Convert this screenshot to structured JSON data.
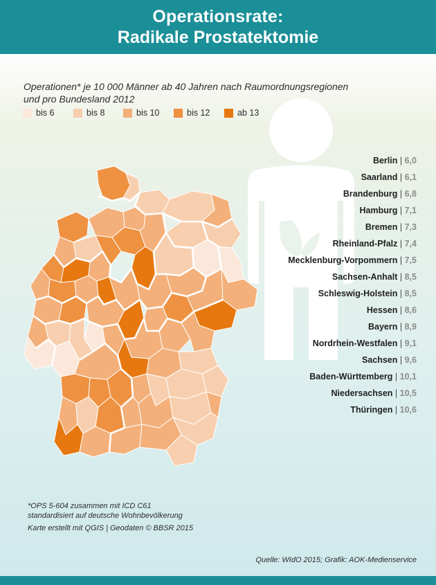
{
  "header": {
    "title_line1": "Operationsrate:",
    "title_line2": "Radikale Prostatektomie"
  },
  "subtitle": "Operationen* je 10 000 Männer ab 40 Jahren nach Raumordnungsregionen und pro Bundesland 2012",
  "legend": [
    {
      "label": "bis 6",
      "color": "#fbe8da"
    },
    {
      "label": "bis 8",
      "color": "#f8cfae"
    },
    {
      "label": "bis 10",
      "color": "#f3b07a"
    },
    {
      "label": "bis 12",
      "color": "#ee9141"
    },
    {
      "label": "ab 13",
      "color": "#e7780f"
    }
  ],
  "ranking": [
    {
      "state": "Berlin",
      "value": "6,0"
    },
    {
      "state": "Saarland",
      "value": "6,1"
    },
    {
      "state": "Brandenburg",
      "value": "6,8"
    },
    {
      "state": "Hamburg",
      "value": "7,1"
    },
    {
      "state": "Bremen",
      "value": "7,3"
    },
    {
      "state": "Rheinland-Pfalz",
      "value": "7,4"
    },
    {
      "state": "Mecklenburg-Vorpommern",
      "value": "7,5"
    },
    {
      "state": "Sachsen-Anhalt",
      "value": "8,5"
    },
    {
      "state": "Schleswig-Holstein",
      "value": "8,5"
    },
    {
      "state": "Hessen",
      "value": "8,6"
    },
    {
      "state": "Bayern",
      "value": "8,9"
    },
    {
      "state": "Nordrhein-Westfalen",
      "value": "9,1"
    },
    {
      "state": "Sachsen",
      "value": "9,6"
    },
    {
      "state": "Baden-Württemberg",
      "value": "10,1"
    },
    {
      "state": "Niedersachsen",
      "value": "10,5"
    },
    {
      "state": "Thüringen",
      "value": "10,6"
    }
  ],
  "rank_separator": "|",
  "footnote": {
    "line1": "*OPS 5-604 zusammen mit ICD C61",
    "line2": "standardisiert auf deutsche Wohnbevölkerung",
    "line3": "Karte erstellt mit QGIS | Geodaten © BBSR 2015"
  },
  "source": "Quelle: WIdO 2015; Grafik: AOK-Medienservice",
  "colors": {
    "header_bg": "#1b8f98",
    "map_region_border": "#ffffff",
    "state_border": "#ffffff"
  },
  "icons": {
    "figure": "man-silhouette-icon",
    "map": "germany-map"
  }
}
